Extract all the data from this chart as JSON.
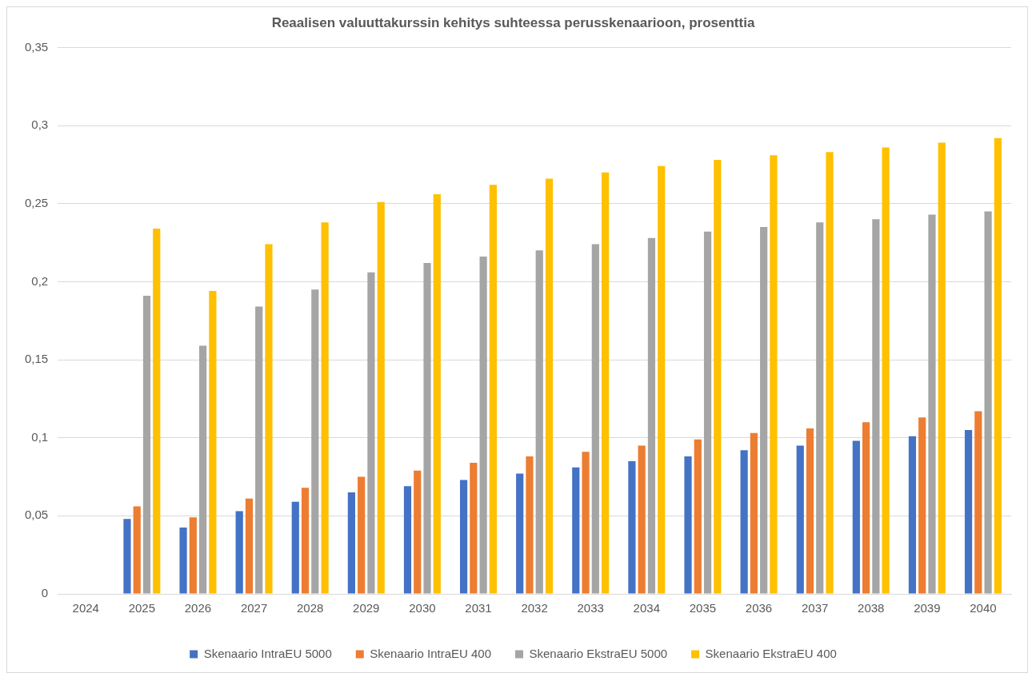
{
  "chart_data": {
    "type": "bar",
    "title": "Reaalisen valuuttakurssin kehitys suhteessa perusskenaarioon, prosenttia",
    "categories": [
      "2024",
      "2025",
      "2026",
      "2027",
      "2028",
      "2029",
      "2030",
      "2031",
      "2032",
      "2033",
      "2034",
      "2035",
      "2036",
      "2037",
      "2038",
      "2039",
      "2040"
    ],
    "series": [
      {
        "name": "Skenaario IntraEU 5000",
        "color": "#4472c4",
        "values": [
          0,
          0.048,
          0.0425,
          0.053,
          0.059,
          0.065,
          0.069,
          0.073,
          0.077,
          0.081,
          0.085,
          0.088,
          0.092,
          0.095,
          0.098,
          0.101,
          0.105
        ]
      },
      {
        "name": "Skenaario IntraEU 400",
        "color": "#ed7d31",
        "values": [
          0,
          0.056,
          0.049,
          0.061,
          0.068,
          0.075,
          0.079,
          0.084,
          0.088,
          0.091,
          0.095,
          0.099,
          0.103,
          0.106,
          0.11,
          0.113,
          0.117
        ]
      },
      {
        "name": "Skenaario EkstraEU 5000",
        "color": "#a5a5a5",
        "values": [
          0,
          0.191,
          0.159,
          0.184,
          0.195,
          0.206,
          0.212,
          0.216,
          0.22,
          0.224,
          0.228,
          0.232,
          0.235,
          0.238,
          0.24,
          0.243,
          0.245
        ]
      },
      {
        "name": "Skenaario EkstraEU 400",
        "color": "#ffc000",
        "values": [
          0,
          0.234,
          0.194,
          0.224,
          0.238,
          0.251,
          0.256,
          0.262,
          0.266,
          0.27,
          0.274,
          0.278,
          0.281,
          0.283,
          0.286,
          0.289,
          0.292
        ]
      }
    ],
    "ylim": [
      0,
      0.35
    ],
    "yticks": [
      0,
      {
        "value": 0.05,
        "label": "0,05"
      },
      {
        "value": 0.1,
        "label": "0,1"
      },
      {
        "value": 0.15,
        "label": "0,15"
      },
      {
        "value": 0.2,
        "label": "0,2"
      },
      {
        "value": 0.25,
        "label": "0,25"
      },
      {
        "value": 0.3,
        "label": "0,3"
      },
      {
        "value": 0.35,
        "label": "0,35"
      }
    ],
    "grid": "y",
    "legend": "bottom"
  }
}
